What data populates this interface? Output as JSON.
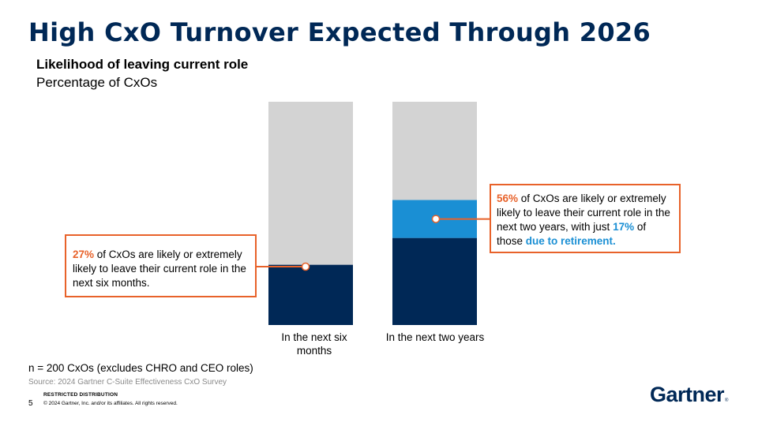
{
  "title": "High CxO Turnover Expected Through 2026",
  "subtitle": "Likelihood of leaving current role",
  "subtitle2": "Percentage of CxOs",
  "chart_data": {
    "type": "bar",
    "stacked": true,
    "categories": [
      "In the next six months",
      "In the next two years"
    ],
    "ylim": [
      0,
      100
    ],
    "series": [
      {
        "values": [
          27,
          39
        ],
        "color": "#002856"
      },
      {
        "values": [
          0,
          17
        ],
        "color": "#1a8fd4"
      },
      {
        "values": [
          73,
          44
        ],
        "color": "#d3d3d3"
      }
    ]
  },
  "callout1": {
    "pct": "27%",
    "text": " of CxOs are likely or extremely likely to leave their current role in the next six months."
  },
  "callout2": {
    "pct": "56%",
    "text1": " of CxOs are likely or extremely likely to leave their current role in the next two years, with just ",
    "pct2": "17%",
    "text2": " of those ",
    "emph": "due to retirement."
  },
  "note": "n = 200 CxOs (excludes CHRO and CEO roles)",
  "source": "Source: 2024 Gartner C-Suite Effectiveness CxO Survey",
  "footer": {
    "restricted": "RESTRICTED DISTRIBUTION",
    "page": "5",
    "copyright": "© 2024 Gartner, Inc. and/or its affiliates. All rights reserved."
  },
  "logo": {
    "text": "Gartner",
    "mark": "®"
  },
  "colors": {
    "navy": "#002856",
    "blue": "#1a8fd4",
    "gray": "#d3d3d3",
    "orange": "#e8622a"
  }
}
